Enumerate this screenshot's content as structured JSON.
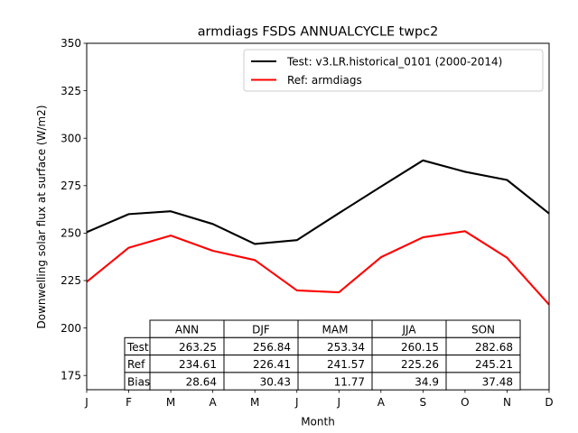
{
  "chart_data": {
    "type": "line",
    "title": "armdiags FSDS ANNUALCYCLE twpc2",
    "xlabel": "Month",
    "ylabel": "Downwelling solar flux at surface (W/m2)",
    "categories": [
      "J",
      "F",
      "M",
      "A",
      "M",
      "J",
      "J",
      "A",
      "S",
      "O",
      "N",
      "D"
    ],
    "ylim": [
      167.5,
      350
    ],
    "yticks": [
      175,
      200,
      225,
      250,
      275,
      300,
      325,
      350
    ],
    "grid": false,
    "legend_position": "top-right",
    "series": [
      {
        "name": "Test: v3.LR.historical_0101 (2000-2014)",
        "color": "#000000",
        "values": [
          250.5,
          260.0,
          261.5,
          254.8,
          244.3,
          246.3,
          260.5,
          274.5,
          288.3,
          282.3,
          278.0,
          260.3
        ]
      },
      {
        "name": "Ref: armdiags",
        "color": "#ff0000",
        "values": [
          224.3,
          242.3,
          248.7,
          240.7,
          235.8,
          219.8,
          218.8,
          237.3,
          247.8,
          251.0,
          237.0,
          212.3
        ]
      }
    ],
    "table": {
      "columns": [
        "ANN",
        "DJF",
        "MAM",
        "JJA",
        "SON"
      ],
      "rows": [
        {
          "label": "Test",
          "values": [
            "263.25",
            "256.84",
            "253.34",
            "260.15",
            "282.68"
          ]
        },
        {
          "label": "Ref",
          "values": [
            "234.61",
            "226.41",
            "241.57",
            "225.26",
            "245.21"
          ]
        },
        {
          "label": "Bias",
          "values": [
            "28.64",
            "30.43",
            "11.77",
            "34.9",
            "37.48"
          ]
        }
      ]
    }
  }
}
